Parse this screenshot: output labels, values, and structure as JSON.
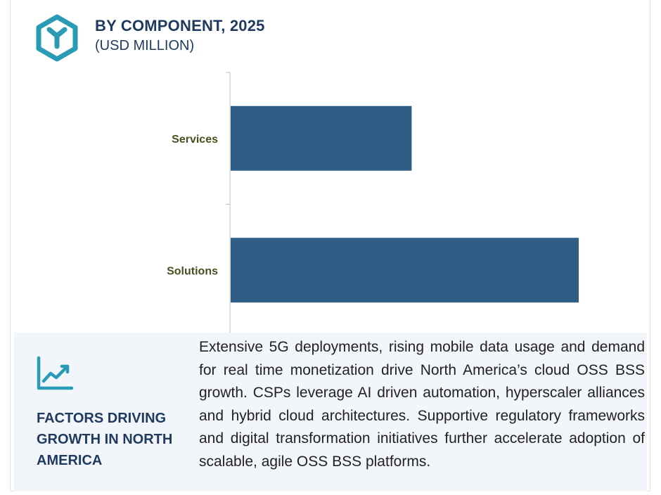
{
  "header": {
    "title": "BY COMPONENT, 2025",
    "subtitle": "(USD MILLION)",
    "logo_icon": "hexagon-y-logo-icon"
  },
  "colors": {
    "bar": "#2e5d85",
    "accent": "#2a9bb5",
    "heading": "#1f3a5f",
    "category_label": "#4a4f1f",
    "panel_bg": "#f2f5f9"
  },
  "chart_data": {
    "type": "bar",
    "orientation": "horizontal",
    "title": "BY COMPONENT, 2025",
    "subtitle": "(USD MILLION)",
    "categories": [
      "Services",
      "Solutions"
    ],
    "values": [
      52,
      100
    ],
    "xlim": [
      0,
      100
    ],
    "xlabel": "",
    "ylabel": "",
    "grid": false,
    "legend": "none"
  },
  "panel": {
    "icon": "trend-line-icon",
    "heading": "FACTORS DRIVING GROWTH IN NORTH AMERICA",
    "text": "Extensive 5G deployments, rising mobile data usage and demand for real time monetization drive North America’s cloud OSS BSS growth. CSPs leverage AI driven automation, hyperscaler alliances and hybrid cloud architectures. Supportive regulatory frameworks and digital transformation initiatives further accelerate adoption of scalable, agile OSS BSS platforms."
  }
}
